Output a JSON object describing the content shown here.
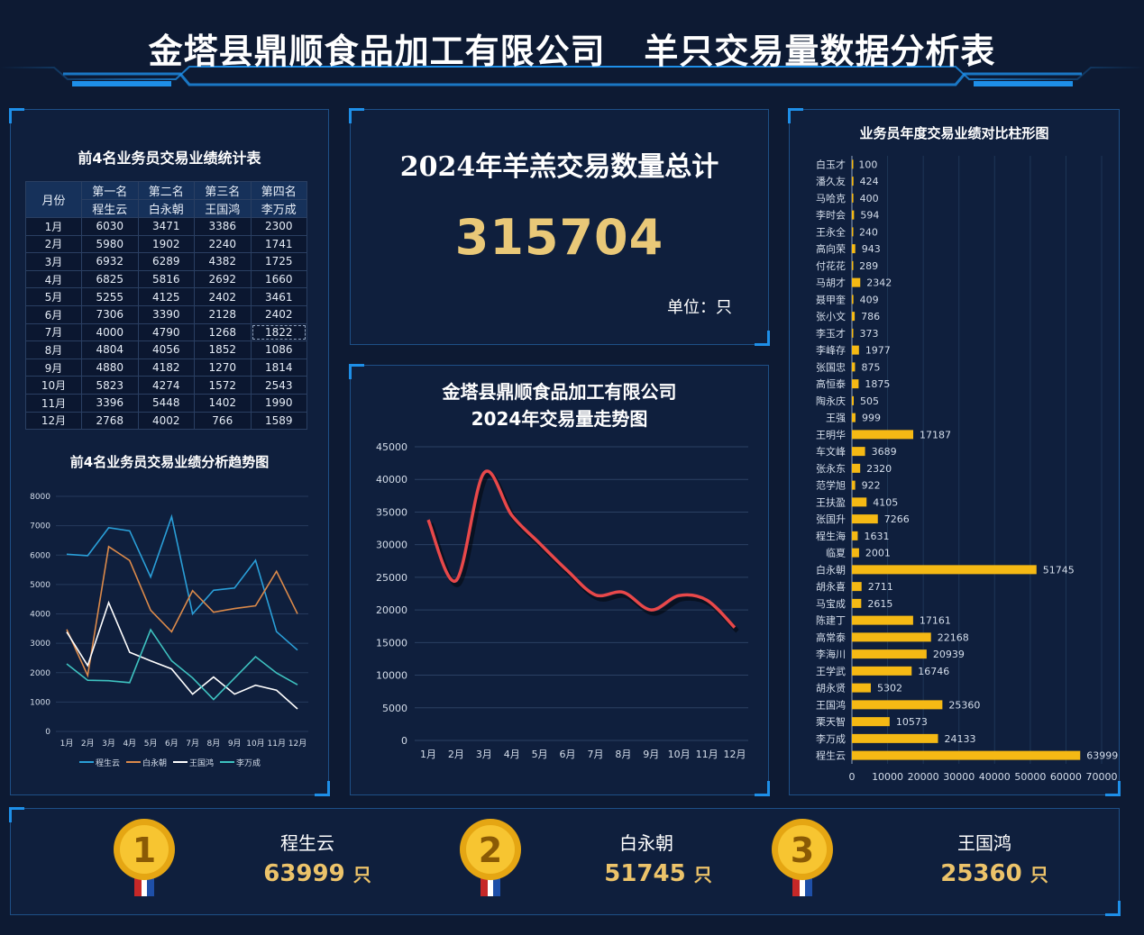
{
  "header": {
    "title": "金塔县鼎顺食品加工有限公司   羊只交易量数据分析表"
  },
  "table": {
    "title": "前4名业务员交易业绩统计表",
    "month_header": "月份",
    "rank_labels": [
      "第一名",
      "第二名",
      "第三名",
      "第四名"
    ],
    "names": [
      "程生云",
      "白永朝",
      "王国鸿",
      "李万成"
    ],
    "rows": [
      [
        "1月",
        "6030",
        "3471",
        "3386",
        "2300"
      ],
      [
        "2月",
        "5980",
        "1902",
        "2240",
        "1741"
      ],
      [
        "3月",
        "6932",
        "6289",
        "4382",
        "1725"
      ],
      [
        "4月",
        "6825",
        "5816",
        "2692",
        "1660"
      ],
      [
        "5月",
        "5255",
        "4125",
        "2402",
        "3461"
      ],
      [
        "6月",
        "7306",
        "3390",
        "2128",
        "2402"
      ],
      [
        "7月",
        "4000",
        "4790",
        "1268",
        "1822"
      ],
      [
        "8月",
        "4804",
        "4056",
        "1852",
        "1086"
      ],
      [
        "9月",
        "4880",
        "4182",
        "1270",
        "1814"
      ],
      [
        "10月",
        "5823",
        "4274",
        "1572",
        "2543"
      ],
      [
        "11月",
        "3396",
        "5448",
        "1402",
        "1990"
      ],
      [
        "12月",
        "2768",
        "4002",
        "766",
        "1589"
      ]
    ]
  },
  "total": {
    "title": "2024年羊羔交易数量总计",
    "value": "315704",
    "unit": "单位：只"
  },
  "ranking": [
    {
      "rank": "1",
      "name": "程生云",
      "value": "63999",
      "unit": "只"
    },
    {
      "rank": "2",
      "name": "白永朝",
      "value": "51745",
      "unit": "只"
    },
    {
      "rank": "3",
      "name": "王国鸿",
      "value": "25360",
      "unit": "只"
    }
  ],
  "colors": {
    "程生云": "#2a9fd8",
    "白永朝": "#dc8a4a",
    "王国鸿": "#ffffff",
    "李万成": "#3ec2c0",
    "trend": "#e8484a",
    "bar": "#f5b914",
    "accent": "#1e8fe8",
    "gold": "#ecc36a"
  },
  "chart_data": [
    {
      "type": "line",
      "title": "前4名业务员交易业绩分析趋势图",
      "categories": [
        "1月",
        "2月",
        "3月",
        "4月",
        "5月",
        "6月",
        "7月",
        "8月",
        "9月",
        "10月",
        "11月",
        "12月"
      ],
      "ylim": [
        0,
        8000
      ],
      "yticks": [
        0,
        1000,
        2000,
        3000,
        4000,
        5000,
        6000,
        7000,
        8000
      ],
      "legend": "bottom",
      "series": [
        {
          "name": "程生云",
          "values": [
            6030,
            5980,
            6932,
            6825,
            5255,
            7306,
            4000,
            4804,
            4880,
            5823,
            3396,
            2768
          ]
        },
        {
          "name": "白永朝",
          "values": [
            3471,
            1902,
            6289,
            5816,
            4125,
            3390,
            4790,
            4056,
            4182,
            4274,
            5448,
            4002
          ]
        },
        {
          "name": "王国鸿",
          "values": [
            3386,
            2240,
            4382,
            2692,
            2402,
            2128,
            1268,
            1852,
            1270,
            1572,
            1402,
            766
          ]
        },
        {
          "name": "李万成",
          "values": [
            2300,
            1741,
            1725,
            1660,
            3461,
            2402,
            1822,
            1086,
            1814,
            2543,
            1990,
            1589
          ]
        }
      ]
    },
    {
      "type": "line",
      "title": "金塔县鼎顺食品加工有限公司\n2024年交易量走势图",
      "title_lines": [
        "金塔县鼎顺食品加工有限公司",
        "2024年交易量走势图"
      ],
      "categories": [
        "1月",
        "2月",
        "3月",
        "4月",
        "5月",
        "6月",
        "7月",
        "8月",
        "9月",
        "10月",
        "11月",
        "12月"
      ],
      "ylim": [
        0,
        45000
      ],
      "yticks": [
        0,
        5000,
        10000,
        15000,
        20000,
        25000,
        30000,
        35000,
        40000,
        45000
      ],
      "grid": true,
      "values": [
        33800,
        24500,
        41000,
        34500,
        30200,
        26000,
        22300,
        22700,
        20000,
        22200,
        21500,
        17300
      ]
    },
    {
      "type": "bar",
      "orientation": "horizontal",
      "title": "业务员年度交易业绩对比柱形图",
      "xlim": [
        0,
        70000
      ],
      "xticks": [
        0,
        10000,
        20000,
        30000,
        40000,
        50000,
        60000,
        70000
      ],
      "categories": [
        "白玉才",
        "潘久友",
        "马哈克",
        "李时会",
        "王永全",
        "高向荣",
        "付花花",
        "马胡才",
        "聂甲奎",
        "张小文",
        "李玉才",
        "李峰存",
        "张国忠",
        "高恒泰",
        "陶永庆",
        "王强",
        "王明华",
        "车文峰",
        "张永东",
        "范学旭",
        "王扶盈",
        "张国升",
        "程生海",
        "临夏",
        "白永朝",
        "胡永喜",
        "马宝成",
        "陈建丁",
        "高常泰",
        "李海川",
        "王学武",
        "胡永贤",
        "王国鸿",
        "栗天智",
        "李万成",
        "程生云"
      ],
      "values": [
        100,
        424,
        400,
        594,
        240,
        943,
        289,
        2342,
        409,
        786,
        373,
        1977,
        875,
        1875,
        505,
        999,
        17187,
        3689,
        2320,
        922,
        4105,
        7266,
        1631,
        2001,
        51745,
        2711,
        2615,
        17161,
        22168,
        20939,
        16746,
        5302,
        25360,
        10573,
        24133,
        63999
      ]
    }
  ]
}
